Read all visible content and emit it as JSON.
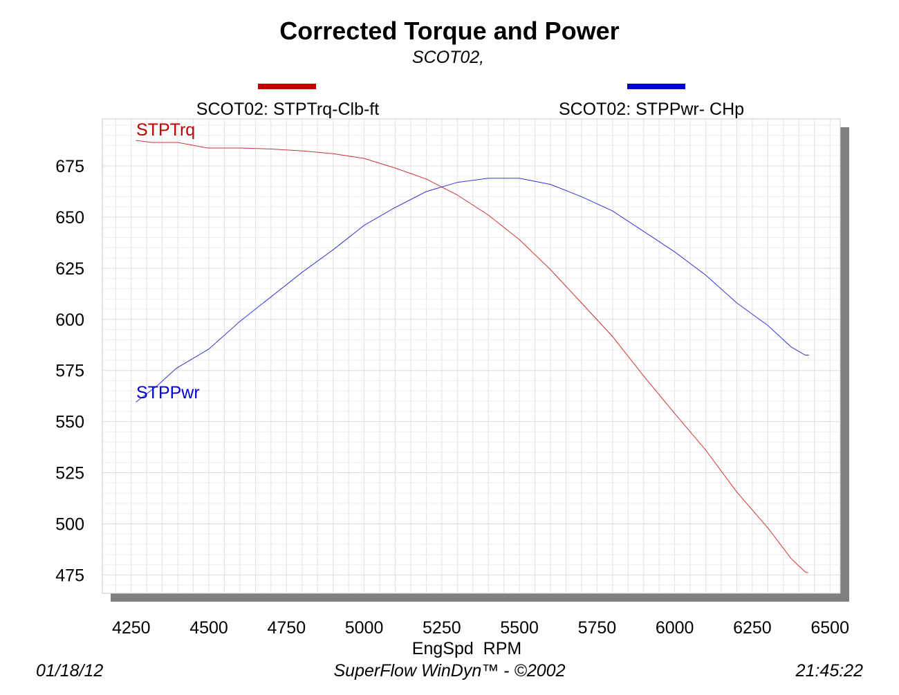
{
  "chart_data": {
    "type": "line",
    "title": "Corrected Torque and Power",
    "subtitle": "SCOT02,",
    "xlabel": "EngSpd  RPM",
    "ylabel": "",
    "xlim": [
      4157,
      6533
    ],
    "ylim": [
      466,
      698
    ],
    "x_ticks": [
      4250,
      4500,
      4750,
      5000,
      5250,
      5500,
      5750,
      6000,
      6250,
      6500
    ],
    "y_ticks": [
      675,
      650,
      625,
      600,
      575,
      550,
      525,
      500,
      475
    ],
    "x_minor_step": 50,
    "y_minor_step": 5,
    "grid": true,
    "legend_placement": "top",
    "series": [
      {
        "name": "SCOT02: STPTrq-Clb-ft",
        "label": "STPTrq",
        "color": "#c00000",
        "x": [
          4265,
          4317,
          4400,
          4495,
          4600,
          4700,
          4800,
          4900,
          5000,
          5100,
          5200,
          5300,
          5400,
          5500,
          5600,
          5700,
          5800,
          5900,
          6000,
          6100,
          6200,
          6300,
          6375,
          6420,
          6430
        ],
        "y": [
          687.5,
          686.5,
          686.5,
          683.8,
          683.8,
          683.3,
          682.4,
          681,
          678.7,
          674,
          668.6,
          660.8,
          651,
          639,
          624.3,
          608,
          591.6,
          572.3,
          554,
          536,
          515.5,
          498,
          483,
          476.5,
          476
        ]
      },
      {
        "name": "SCOT02: STPPwr- CHp",
        "label": "STPPwr",
        "color": "#0000d0",
        "x": [
          4265,
          4334,
          4395,
          4500,
          4600,
          4700,
          4800,
          4900,
          5000,
          5100,
          5200,
          5300,
          5400,
          5500,
          5600,
          5700,
          5800,
          5900,
          6000,
          6100,
          6200,
          6300,
          6375,
          6420,
          6432
        ],
        "y": [
          559.5,
          567.6,
          576,
          585.5,
          599,
          611,
          623,
          634,
          646,
          654.7,
          662.5,
          667,
          669,
          669,
          666,
          660,
          653,
          643,
          633,
          621.6,
          608,
          597,
          586.5,
          582.5,
          582.5
        ]
      }
    ]
  },
  "footer": {
    "date": "01/18/12",
    "software": "SuperFlow WinDyn™ - ©2002",
    "time": "21:45:22"
  }
}
